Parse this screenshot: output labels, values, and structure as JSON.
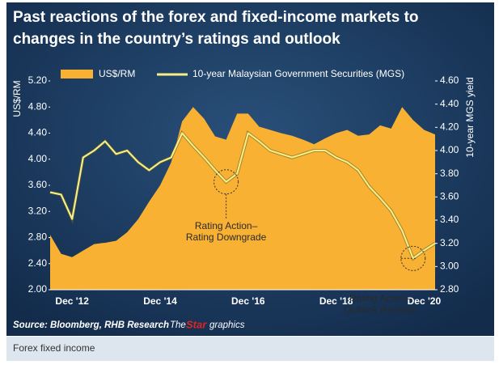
{
  "chart_data": {
    "type": "area-line",
    "title": [
      "Past reactions of the forex and fixed-income markets to",
      "changes in the country’s ratings and outlook"
    ],
    "ylabel": "US$/RM",
    "y2label": "10-year MGS yield",
    "categories": [
      null,
      null,
      "Dec '12",
      null,
      null,
      null,
      null,
      null,
      null,
      null,
      "Dec '14",
      null,
      null,
      null,
      null,
      null,
      null,
      null,
      "Dec '16",
      null,
      null,
      null,
      null,
      null,
      null,
      null,
      "Dec '18",
      null,
      null,
      null,
      null,
      null,
      null,
      null,
      "Dec '20",
      null
    ],
    "series": [
      {
        "name": "US$/RM",
        "color": "#f8b133",
        "values": [
          2.84,
          2.55,
          2.5,
          2.6,
          2.7,
          2.72,
          2.75,
          2.88,
          3.08,
          3.35,
          3.6,
          3.95,
          4.58,
          4.8,
          4.62,
          4.35,
          4.3,
          4.7,
          4.7,
          4.5,
          4.45,
          4.4,
          4.36,
          4.3,
          4.23,
          4.32,
          4.4,
          4.45,
          4.36,
          4.38,
          4.52,
          4.47,
          4.8,
          4.6,
          4.45,
          4.38
        ]
      },
      {
        "name": "10-year Malaysian Government Securities (MGS)",
        "color": "#f3ef86",
        "axis": "y2",
        "values": [
          3.64,
          3.62,
          3.41,
          3.94,
          4.0,
          4.08,
          3.97,
          4.0,
          3.9,
          3.83,
          3.9,
          3.94,
          4.15,
          4.04,
          3.94,
          3.83,
          3.73,
          3.8,
          4.15,
          4.08,
          4.0,
          3.97,
          3.94,
          3.97,
          4.0,
          4.0,
          3.94,
          3.9,
          3.83,
          3.69,
          3.59,
          3.48,
          3.31,
          3.07,
          3.14,
          3.2
        ]
      }
    ],
    "ylim": [
      2.0,
      5.2
    ],
    "yticks": [
      {
        "value": 2.0,
        "label": "2.00"
      },
      {
        "value": 2.4,
        "label": "2.40"
      },
      {
        "value": 2.8,
        "label": "2.80"
      },
      {
        "value": 3.2,
        "label": "3.20"
      },
      {
        "value": 3.6,
        "label": "3.60"
      },
      {
        "value": 4.0,
        "label": "4.00"
      },
      {
        "value": 4.4,
        "label": "4.40"
      },
      {
        "value": 4.8,
        "label": "4.80"
      },
      {
        "value": 5.2,
        "label": "5.20"
      }
    ],
    "y2lim": [
      2.8,
      4.6
    ],
    "y2ticks": [
      {
        "value": 2.8,
        "label": "2.80"
      },
      {
        "value": 3.0,
        "label": "3.00"
      },
      {
        "value": 3.2,
        "label": "3.20"
      },
      {
        "value": 3.4,
        "label": "3.40"
      },
      {
        "value": 3.6,
        "label": "3.60"
      },
      {
        "value": 3.8,
        "label": "3.80"
      },
      {
        "value": 4.0,
        "label": "4.00"
      },
      {
        "value": 4.2,
        "label": "4.20"
      },
      {
        "value": 4.4,
        "label": "4.40"
      },
      {
        "value": 4.6,
        "label": "4.60"
      }
    ],
    "annotations": [
      {
        "text": [
          "Rating Action–",
          "Rating Downgrade"
        ],
        "index": 16
      },
      {
        "text": [
          "Rating Action–",
          "Outlook Revision"
        ],
        "index": 33
      }
    ],
    "source": "Source: Bloomberg, RHB Research",
    "logo": [
      "The",
      "Star",
      "graphics"
    ]
  },
  "caption": "Forex fixed income"
}
